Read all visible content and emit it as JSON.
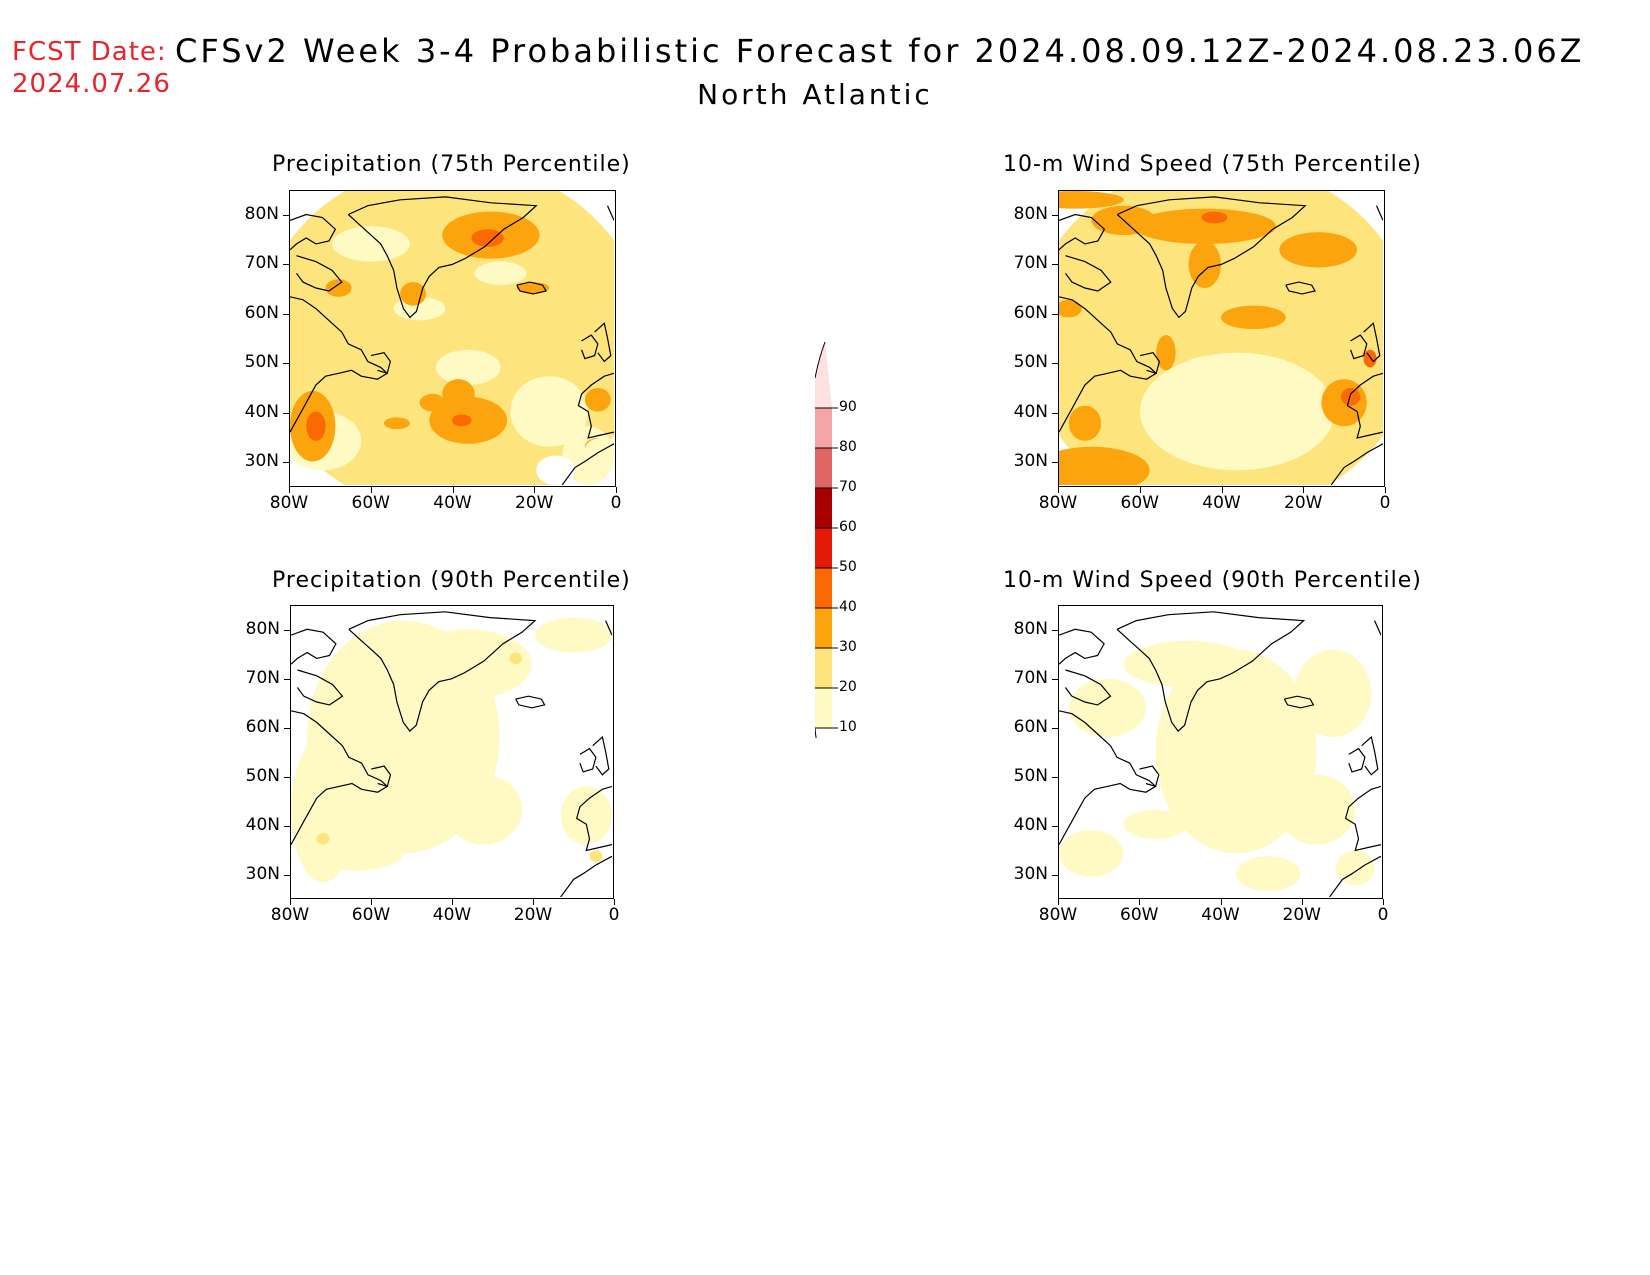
{
  "header": {
    "fcst_label": "FCST Date:",
    "fcst_date": "2024.07.26",
    "title": "CFSv2 Week 3-4 Probabilistic Forecast for 2024.08.09.12Z-2024.08.23.06Z",
    "subtitle": "North Atlantic"
  },
  "axes": {
    "lat_ticks": [
      "80N",
      "70N",
      "60N",
      "50N",
      "40N",
      "30N"
    ],
    "lon_ticks": [
      "80W",
      "60W",
      "40W",
      "20W",
      "0"
    ]
  },
  "panels": [
    {
      "title": "Precipitation (75th Percentile)",
      "variable": "precipitation",
      "percentile": 75,
      "base_level": 20
    },
    {
      "title": "10-m Wind Speed (75th Percentile)",
      "variable": "wind",
      "percentile": 75,
      "base_level": 20
    },
    {
      "title": "Precipitation (90th Percentile)",
      "variable": "precipitation",
      "percentile": 90,
      "base_level": 10
    },
    {
      "title": "10-m Wind Speed (90th Percentile)",
      "variable": "wind",
      "percentile": 90,
      "base_level": 10
    }
  ],
  "colorbar": {
    "levels": [
      "10",
      "20",
      "30",
      "40",
      "50",
      "60",
      "70",
      "80",
      "90"
    ],
    "colors": [
      "#fff9c4",
      "#fde47c",
      "#fba40d",
      "#fb6a02",
      "#e31a05",
      "#a80000",
      "#e06565",
      "#f4a5a5",
      "#fde0e0"
    ]
  }
}
